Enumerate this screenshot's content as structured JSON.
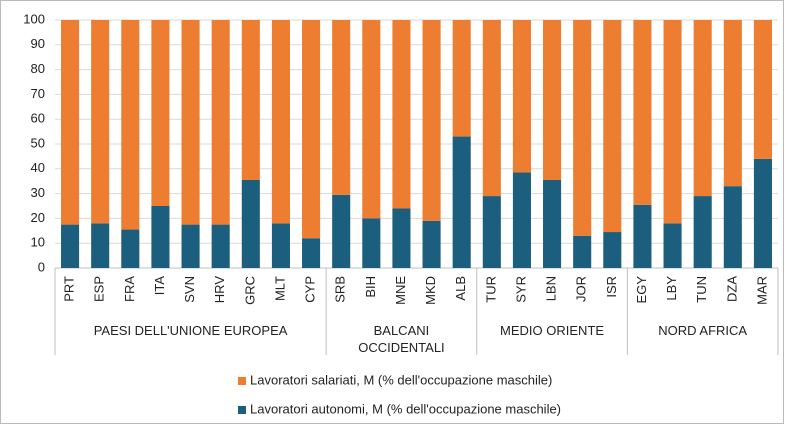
{
  "chart_data": {
    "type": "stacked_bar",
    "groups": [
      {
        "label": "PAESI DELL'UNIONE EUROPEA",
        "categories": [
          "PRT",
          "ESP",
          "FRA",
          "ITA",
          "SVN",
          "HRV",
          "GRC",
          "MLT",
          "CYP"
        ]
      },
      {
        "label": "BALCANI OCCIDENTALI",
        "categories": [
          "SRB",
          "BIH",
          "MNE",
          "MKD",
          "ALB"
        ]
      },
      {
        "label": "MEDIO ORIENTE",
        "categories": [
          "TUR",
          "SYR",
          "LBN",
          "JOR",
          "ISR"
        ]
      },
      {
        "label": "NORD AFRICA",
        "categories": [
          "EGY",
          "LBY",
          "TUN",
          "DZA",
          "MAR"
        ]
      }
    ],
    "series": [
      {
        "name": "Lavoratori autonomi, M (% dell'occupazione maschile)",
        "color": "#1b5e7e",
        "values": [
          17.5,
          18,
          15.5,
          25,
          17.5,
          17.5,
          35.5,
          18,
          12,
          29.5,
          20,
          24,
          19,
          53,
          29,
          38.5,
          35.5,
          13,
          14.5,
          25.5,
          18,
          29,
          33,
          44
        ]
      },
      {
        "name": "Lavoratori salariati, M (% dell'occupazione maschile)",
        "color": "#ed7d31",
        "values": [
          82.5,
          82,
          84.5,
          75,
          82.5,
          82.5,
          64.5,
          82,
          88,
          70.5,
          80,
          76,
          81,
          47,
          71,
          61.5,
          64.5,
          87,
          85.5,
          74.5,
          82,
          71,
          67,
          56
        ]
      }
    ],
    "ylim": [
      0,
      100
    ],
    "yticks": [
      0,
      10,
      20,
      30,
      40,
      50,
      60,
      70,
      80,
      90,
      100
    ],
    "grid": true
  }
}
